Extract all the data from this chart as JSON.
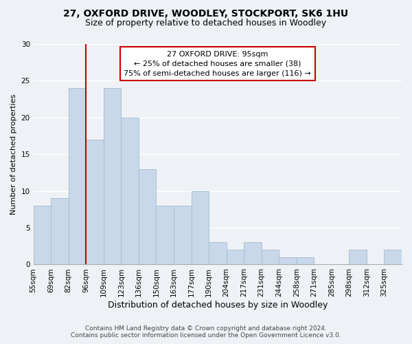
{
  "title": "27, OXFORD DRIVE, WOODLEY, STOCKPORT, SK6 1HU",
  "subtitle": "Size of property relative to detached houses in Woodley",
  "xlabel": "Distribution of detached houses by size in Woodley",
  "ylabel": "Number of detached properties",
  "bins": [
    "55sqm",
    "69sqm",
    "82sqm",
    "96sqm",
    "109sqm",
    "123sqm",
    "136sqm",
    "150sqm",
    "163sqm",
    "177sqm",
    "190sqm",
    "204sqm",
    "217sqm",
    "231sqm",
    "244sqm",
    "258sqm",
    "271sqm",
    "285sqm",
    "298sqm",
    "312sqm",
    "325sqm"
  ],
  "values": [
    8,
    9,
    24,
    17,
    24,
    20,
    13,
    8,
    8,
    10,
    3,
    2,
    3,
    2,
    1,
    1,
    0,
    0,
    2,
    0,
    2
  ],
  "bar_color": "#c8d8ea",
  "bar_edge_color": "#a8bfd0",
  "vline_x_index": 3,
  "vline_color": "#cc0000",
  "ylim": [
    0,
    30
  ],
  "yticks": [
    0,
    5,
    10,
    15,
    20,
    25,
    30
  ],
  "annotation_text": "27 OXFORD DRIVE: 95sqm\n← 25% of detached houses are smaller (38)\n75% of semi-detached houses are larger (116) →",
  "annotation_box_color": "#ffffff",
  "annotation_box_edge": "#cc0000",
  "footnote1": "Contains HM Land Registry data © Crown copyright and database right 2024.",
  "footnote2": "Contains public sector information licensed under the Open Government Licence v3.0.",
  "background_color": "#eef2f6",
  "grid_color": "#ffffff",
  "title_fontsize": 10,
  "subtitle_fontsize": 9,
  "ylabel_fontsize": 8,
  "xlabel_fontsize": 9,
  "tick_fontsize": 7.5,
  "annotation_fontsize": 8,
  "footnote_fontsize": 6.5
}
